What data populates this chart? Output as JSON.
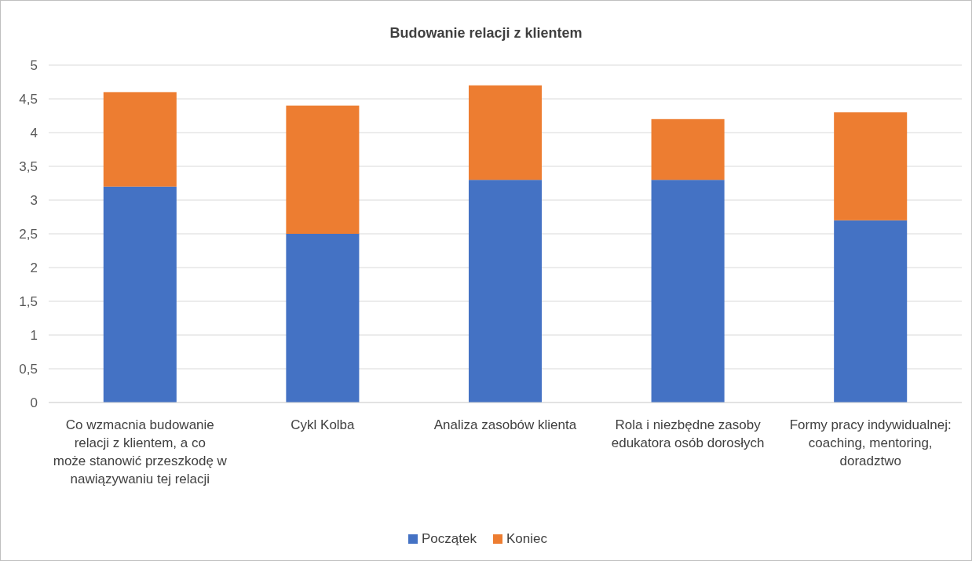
{
  "chart_data": {
    "type": "bar",
    "title": "Budowanie relacji z klientem",
    "stacked": true,
    "categories": [
      "Co wzmacnia budowanie relacji z klientem, a co może stanowić przeszkodę w nawiązywaniu tej relacji",
      "Cykl Kolba",
      "Analiza zasobów klienta",
      "Rola i niezbędne zasoby edukatora osób dorosłych",
      "Formy pracy indywidualnej: coaching, mentoring, doradztwo"
    ],
    "series": [
      {
        "name": "Początek",
        "color": "#4472c4",
        "values": [
          3.2,
          2.5,
          3.3,
          3.3,
          2.7
        ]
      },
      {
        "name": "Koniec",
        "color": "#ed7d31",
        "values": [
          1.4,
          1.9,
          1.4,
          0.9,
          1.6
        ]
      }
    ],
    "ylim": [
      0,
      5
    ],
    "yticks": [
      0,
      {
        "value": 0.5,
        "label": "0,5"
      },
      1,
      {
        "value": 1.5,
        "label": "1,5"
      },
      2,
      {
        "value": 2.5,
        "label": "2,5"
      },
      3,
      {
        "value": 3.5,
        "label": "3,5"
      },
      4,
      {
        "value": 4.5,
        "label": "4,5"
      },
      5
    ],
    "grid": "y",
    "legend": "bottom"
  }
}
